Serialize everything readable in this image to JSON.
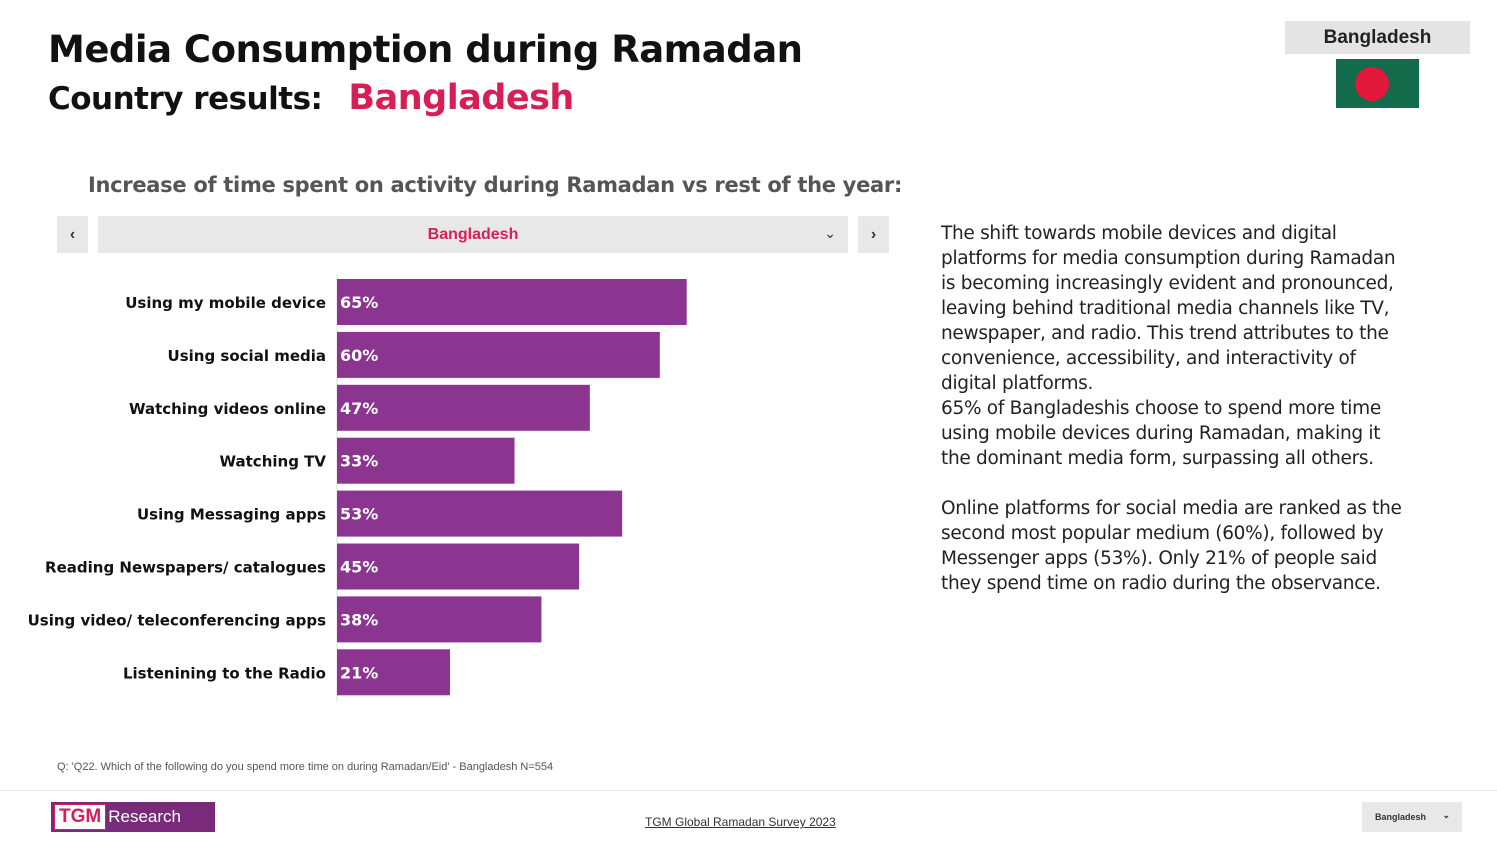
{
  "header": {
    "title": "Media Consumption during Ramadan",
    "subtitle": "Country results:",
    "country": "Bangladesh"
  },
  "flag_panel": {
    "label": "Bangladesh",
    "flag_colors": {
      "field": "#126b4a",
      "disc": "#e0193c"
    }
  },
  "selector": {
    "prev_icon": "chevron-left-icon",
    "next_icon": "chevron-right-icon",
    "selected": "Bangladesh"
  },
  "chart_data": {
    "type": "bar",
    "orientation": "horizontal",
    "title": "Increase of time spent on activity during Ramadan vs rest of the year:",
    "categories": [
      "Using my mobile device",
      "Using social media",
      "Watching videos online",
      "Watching TV",
      "Using Messaging apps",
      "Reading Newspapers/ catalogues",
      "Using video/ teleconferencing apps",
      "Listenining to the Radio"
    ],
    "values": [
      65,
      60,
      47,
      33,
      53,
      45,
      38,
      21
    ],
    "data_labels": [
      "65%",
      "60%",
      "47%",
      "33%",
      "53%",
      "45%",
      "38%",
      "21%"
    ],
    "unit": "%",
    "xlim": [
      0,
      100
    ],
    "bar_color": "#8b3590",
    "grid": false,
    "legend": "none"
  },
  "commentary": [
    "The shift towards mobile devices and digital platforms for media consumption during Ramadan is becoming increasingly evident and pronounced, leaving behind traditional media channels like TV, newspaper, and radio. This trend attributes to the convenience, accessibility, and interactivity of digital platforms.",
    "65% of Bangladeshis choose to spend more time using mobile devices during Ramadan, making it the dominant media form, surpassing all others.",
    "Online platforms for social media are ranked as the second most popular medium (60%), followed by Messenger apps (53%). Only 21% of people said they spend time on radio during the observance."
  ],
  "footnote": "Q: 'Q22. Which of the following do you spend more time on during Ramadan/Eid' - Bangladesh N=554",
  "footer": {
    "logo_left": "TGM",
    "logo_right": "Research",
    "survey_link": "TGM Global Ramadan Survey 2023",
    "country_select": "Bangladesh"
  },
  "colors": {
    "accent": "#d81f55",
    "bar": "#8b3590"
  }
}
